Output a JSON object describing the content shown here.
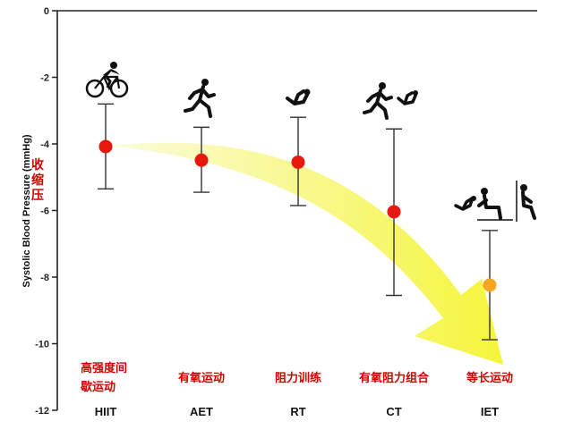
{
  "chart_data": {
    "type": "scatter",
    "title": "",
    "xlabel": "",
    "ylabel": "Systolic Blood Pressure (mmHg)",
    "ylabel_cn": "收缩压",
    "ylim": [
      -12,
      0
    ],
    "yticks": [
      0,
      -2,
      -4,
      -6,
      -8,
      -10,
      -12
    ],
    "grid": false,
    "categories": [
      "HIIT",
      "AET",
      "RT",
      "CT",
      "IET"
    ],
    "categories_cn": [
      "高强度间\n歇运动",
      "有氧运动",
      "阻力训练",
      "有氧阻力组合",
      "等长运动"
    ],
    "values": [
      -4.08,
      -4.49,
      -4.55,
      -6.04,
      -8.24
    ],
    "ci_upper": [
      -2.8,
      -3.5,
      -3.2,
      -3.55,
      -6.6
    ],
    "ci_lower": [
      -5.35,
      -5.45,
      -5.85,
      -8.55,
      -9.88
    ],
    "marker_colors": [
      "#e8180f",
      "#e8180f",
      "#e8180f",
      "#e8180f",
      "#f5a623"
    ],
    "icons": [
      "cycling-icon",
      "running-icon",
      "resistance-icon",
      "running-resistance-icon",
      "isometric-icon"
    ],
    "annotation": "yellow-trend-arrow"
  }
}
